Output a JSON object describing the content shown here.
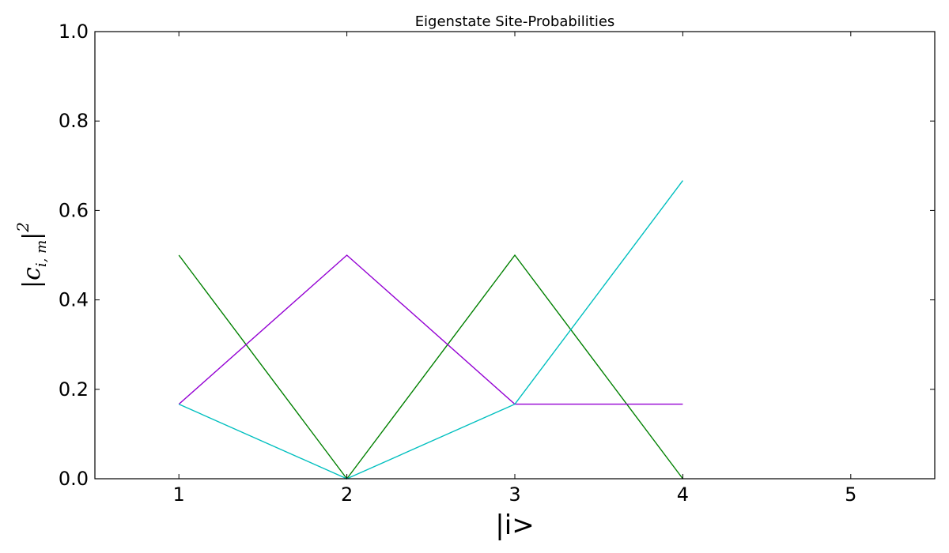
{
  "chart_data": {
    "type": "line",
    "title": "Eigenstate Site-Probabilities",
    "xlabel": "|i>",
    "ylabel": {
      "base": "|c",
      "sub": "i, m",
      "close": "|",
      "sup": "2"
    },
    "xlim": [
      0.5,
      5.5
    ],
    "ylim": [
      0.0,
      1.0
    ],
    "xticks": [
      1,
      2,
      3,
      4,
      5
    ],
    "yticks": [
      0.0,
      0.2,
      0.4,
      0.6,
      0.8,
      1.0
    ],
    "xtick_labels": [
      "1",
      "2",
      "3",
      "4",
      "5"
    ],
    "ytick_labels": [
      "0.0",
      "0.2",
      "0.4",
      "0.6",
      "0.8",
      "1.0"
    ],
    "grid": false,
    "x": [
      1,
      2,
      3,
      4
    ],
    "series": [
      {
        "values": [
          0.5,
          0.0,
          0.5,
          0.0
        ],
        "color": "#008000"
      },
      {
        "values": [
          0.1667,
          0.5,
          0.1667,
          0.1667
        ],
        "color": "#9400d3"
      },
      {
        "values": [
          0.1667,
          0.0,
          0.1667,
          0.6667
        ],
        "color": "#00bfbf"
      }
    ]
  }
}
